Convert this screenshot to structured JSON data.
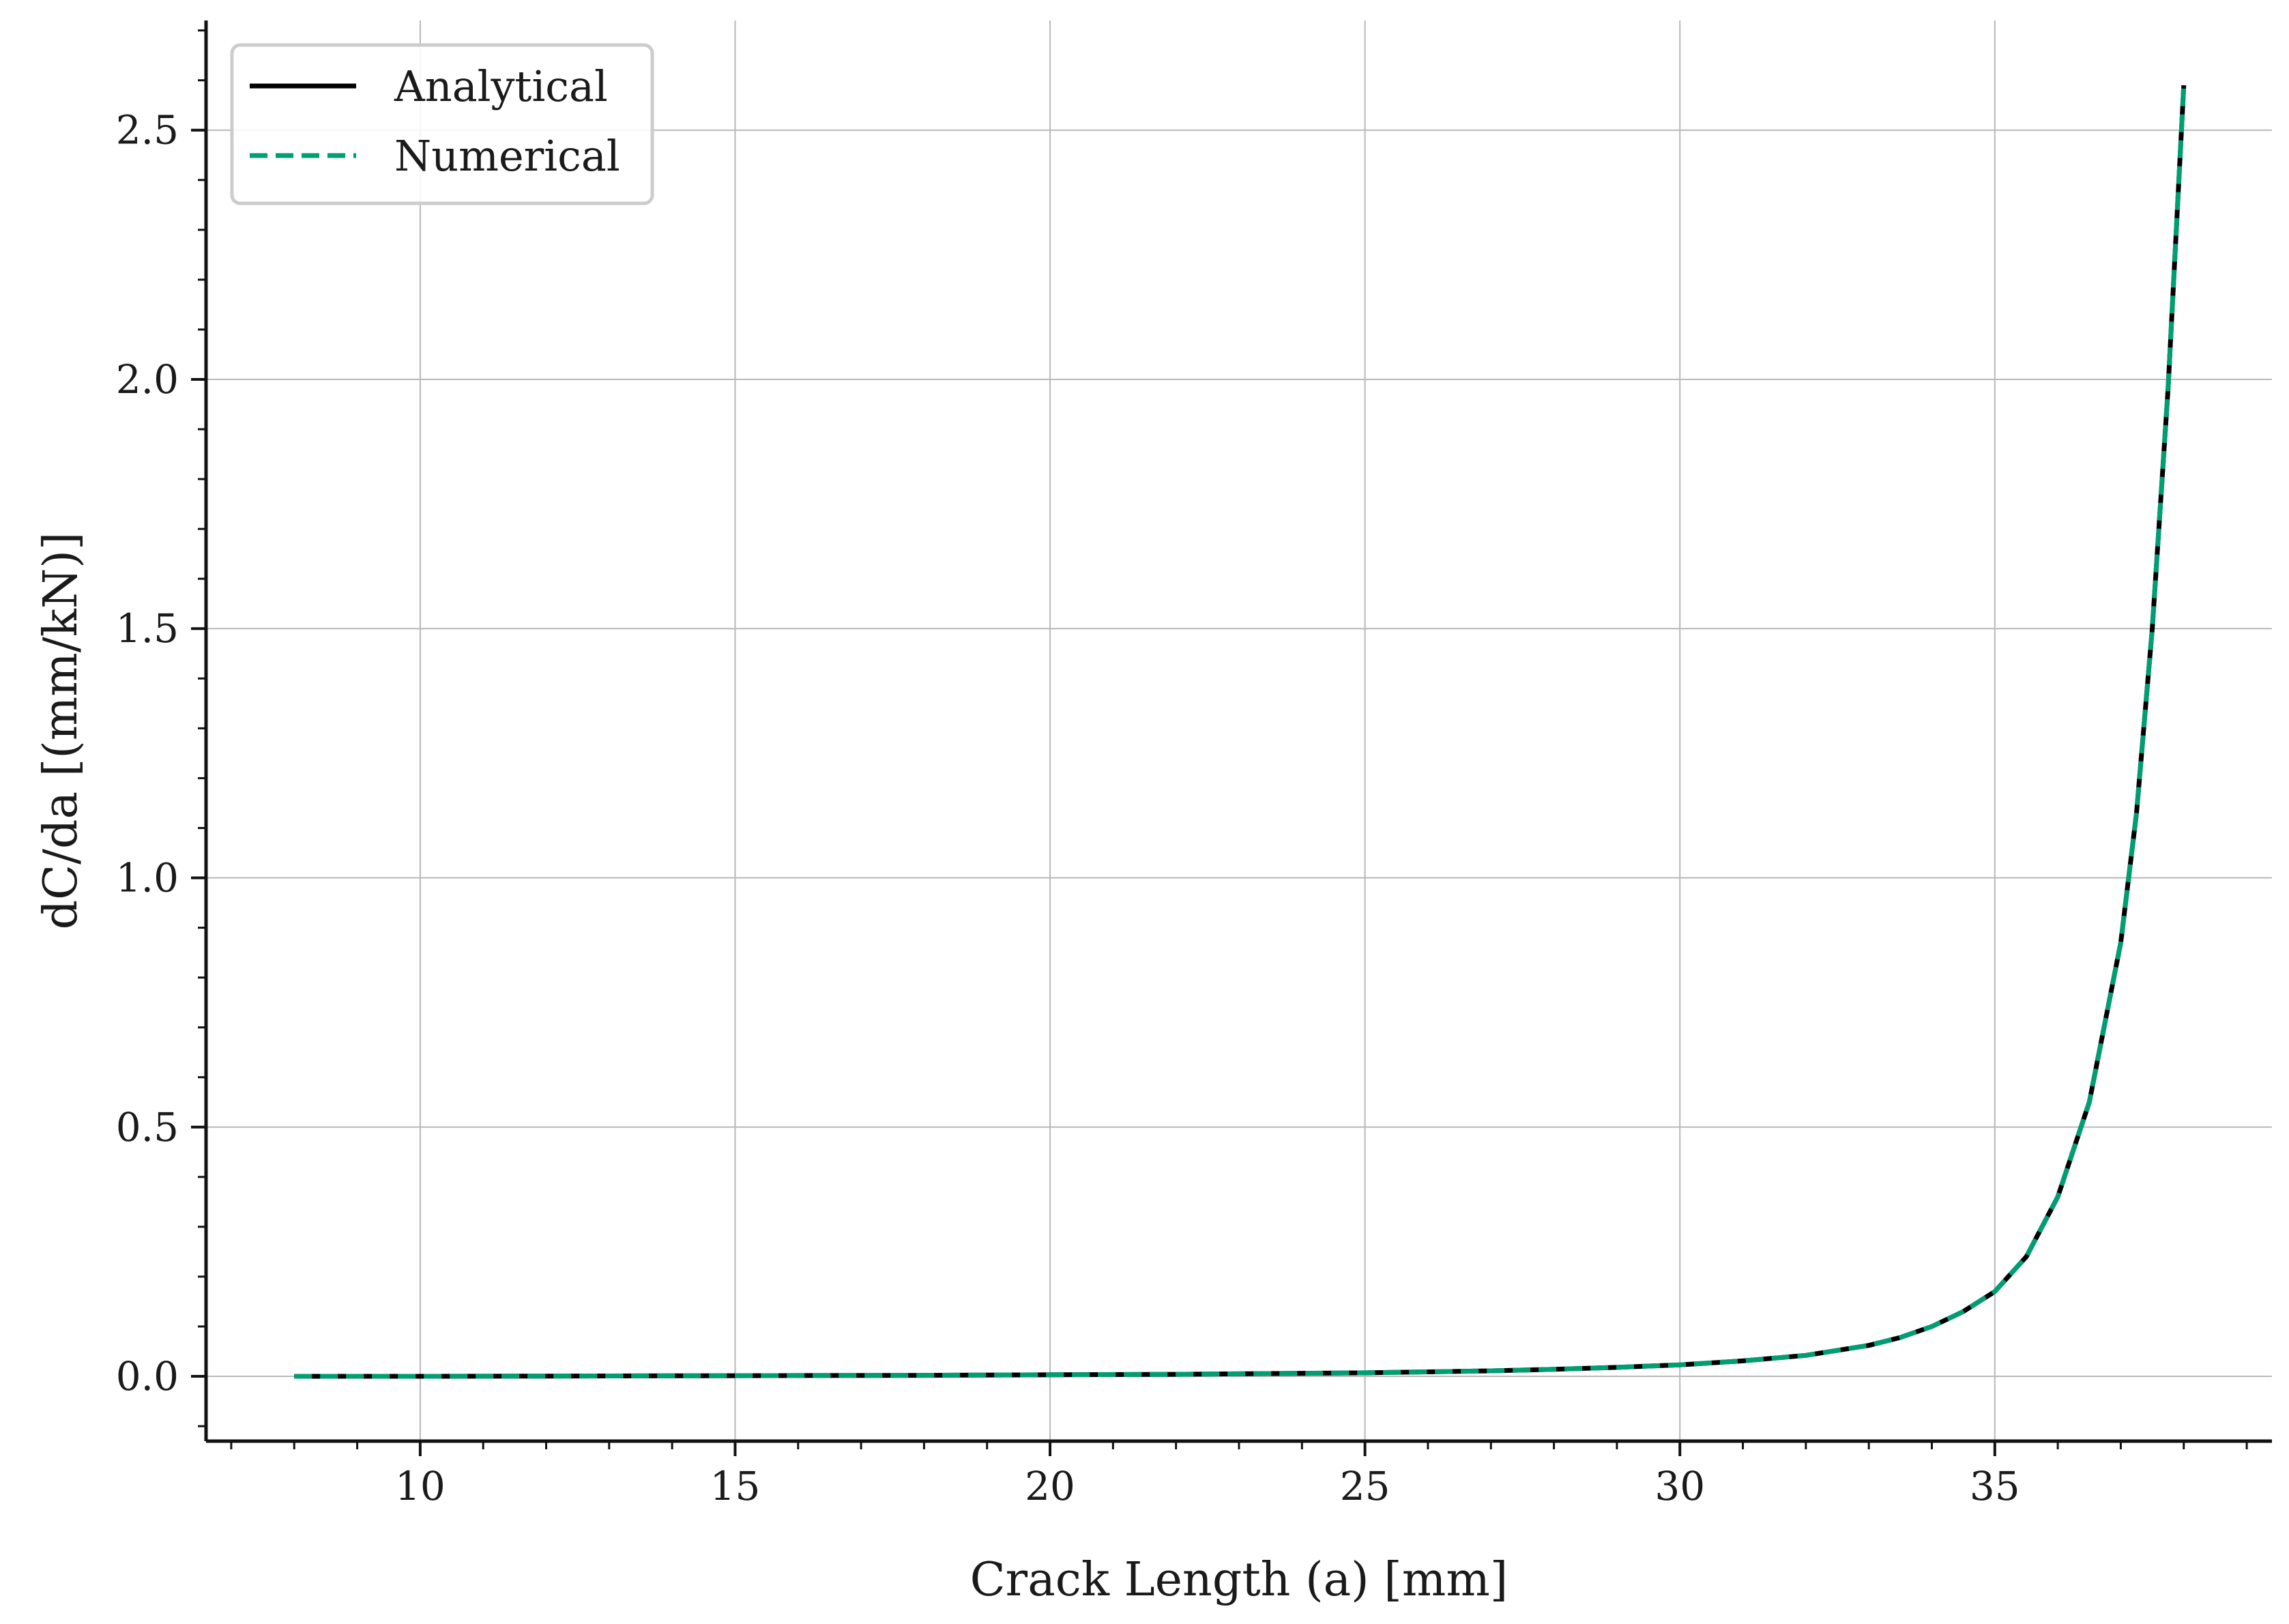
{
  "chart_data": {
    "type": "line",
    "xlabel": "Crack Length (a) [mm]",
    "ylabel": "dC/da [(mm/kN)]",
    "xlim": [
      6.6,
      39.4
    ],
    "ylim": [
      -0.13,
      2.72
    ],
    "x_ticks": [
      10,
      15,
      20,
      25,
      30,
      35
    ],
    "x_tick_labels": [
      "10",
      "15",
      "20",
      "25",
      "30",
      "35"
    ],
    "y_ticks": [
      0.0,
      0.5,
      1.0,
      1.5,
      2.0,
      2.5
    ],
    "y_tick_labels": [
      "0.0",
      "0.5",
      "1.0",
      "1.5",
      "2.0",
      "2.5"
    ],
    "x_minor_step": 1,
    "y_minor_step": 0.1,
    "grid": true,
    "legend_position": "top-left",
    "series": [
      {
        "name": "Analytical",
        "color": "#000000",
        "style": "solid",
        "x": [
          8,
          10,
          12,
          14,
          16,
          18,
          20,
          22,
          24,
          25,
          26,
          27,
          28,
          29,
          30,
          31,
          32,
          33,
          33.5,
          34,
          34.5,
          35,
          35.5,
          36,
          36.5,
          37,
          37.25,
          37.5,
          37.75,
          38
        ],
        "y": [
          0.0,
          0.0,
          0.0005,
          0.001,
          0.0015,
          0.002,
          0.003,
          0.004,
          0.006,
          0.007,
          0.009,
          0.011,
          0.014,
          0.018,
          0.023,
          0.031,
          0.042,
          0.062,
          0.078,
          0.1,
          0.13,
          0.17,
          0.24,
          0.36,
          0.55,
          0.87,
          1.13,
          1.5,
          1.98,
          2.59
        ]
      },
      {
        "name": "Numerical",
        "color": "#009e73",
        "style": "dashed",
        "x": [
          8,
          10,
          12,
          14,
          16,
          18,
          20,
          22,
          24,
          25,
          26,
          27,
          28,
          29,
          30,
          31,
          32,
          33,
          33.5,
          34,
          34.5,
          35,
          35.5,
          36,
          36.5,
          37,
          37.25,
          37.5,
          37.75,
          38
        ],
        "y": [
          0.0,
          0.0,
          0.0005,
          0.001,
          0.0015,
          0.002,
          0.003,
          0.004,
          0.006,
          0.007,
          0.009,
          0.011,
          0.014,
          0.018,
          0.023,
          0.031,
          0.042,
          0.062,
          0.078,
          0.1,
          0.13,
          0.17,
          0.24,
          0.36,
          0.55,
          0.87,
          1.13,
          1.5,
          1.98,
          2.59
        ]
      }
    ]
  }
}
